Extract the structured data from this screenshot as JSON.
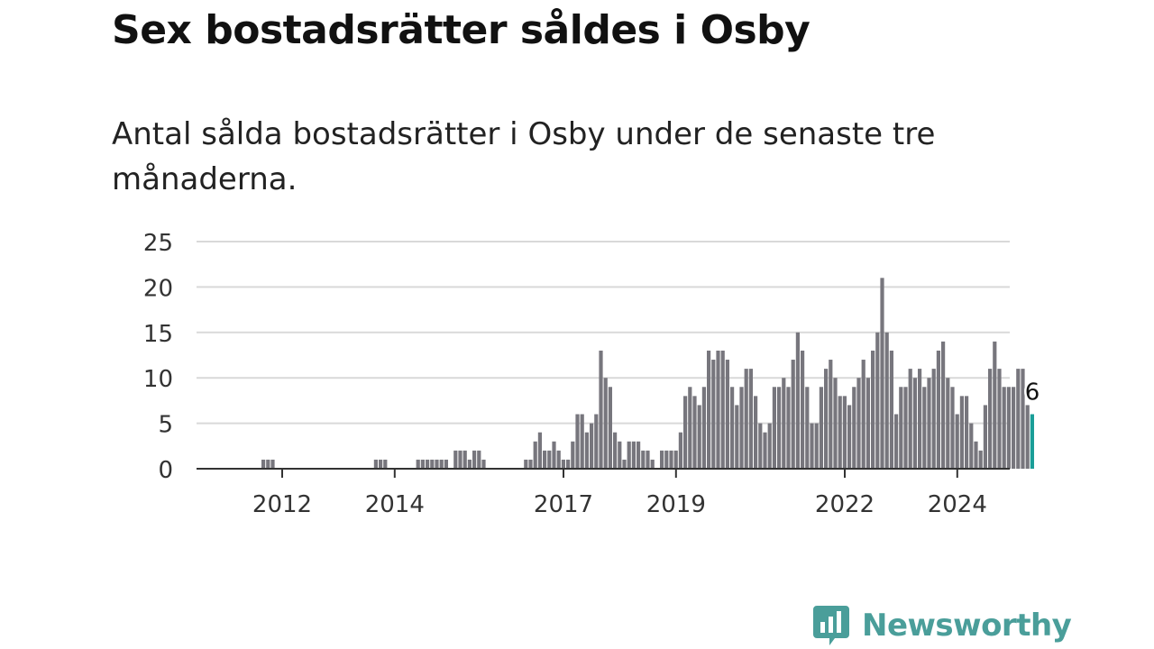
{
  "title": "Sex bostadsrätter såldes i Osby",
  "subtitle": "Antal sålda bostadsrätter i Osby under de senaste tre månaderna.",
  "brand": {
    "name": "Newsworthy",
    "icon": "newsworthy-logo-icon",
    "color": "#4a9e9a"
  },
  "colors": {
    "bar": "#77767d",
    "highlight": "#1a9e98",
    "grid": "#d9d9d9",
    "axis": "#333333"
  },
  "chart_data": {
    "type": "bar",
    "title": "Sex bostadsrätter såldes i Osby",
    "xlabel": "",
    "ylabel": "",
    "ylim": [
      0,
      25
    ],
    "yticks": [
      0,
      5,
      10,
      15,
      20,
      25
    ],
    "xticks": [
      "2012",
      "2014",
      "2017",
      "2019",
      "2022",
      "2024"
    ],
    "grid": true,
    "highlight_label": "6",
    "values": [
      0,
      0,
      0,
      0,
      0,
      0,
      0,
      0,
      1,
      1,
      1,
      0,
      0,
      0,
      0,
      0,
      0,
      0,
      0,
      0,
      0,
      0,
      0,
      0,
      0,
      0,
      0,
      0,
      0,
      0,
      0,
      0,
      1,
      1,
      1,
      0,
      0,
      0,
      0,
      0,
      0,
      1,
      1,
      1,
      1,
      1,
      1,
      1,
      0,
      2,
      2,
      2,
      1,
      2,
      2,
      1,
      0,
      0,
      0,
      0,
      0,
      0,
      0,
      0,
      1,
      1,
      3,
      4,
      2,
      2,
      3,
      2,
      1,
      1,
      3,
      6,
      6,
      4,
      5,
      6,
      13,
      10,
      9,
      4,
      3,
      1,
      3,
      3,
      3,
      2,
      2,
      1,
      0,
      2,
      2,
      2,
      2,
      4,
      8,
      9,
      8,
      7,
      9,
      13,
      12,
      13,
      13,
      12,
      9,
      7,
      9,
      11,
      11,
      8,
      5,
      4,
      5,
      9,
      9,
      10,
      9,
      12,
      15,
      13,
      9,
      5,
      5,
      9,
      11,
      12,
      10,
      8,
      8,
      7,
      9,
      10,
      12,
      10,
      13,
      15,
      21,
      15,
      13,
      6,
      9,
      9,
      11,
      10,
      11,
      9,
      10,
      11,
      13,
      14,
      10,
      9,
      6,
      8,
      8,
      5,
      3,
      2,
      7,
      11,
      14,
      11,
      9,
      9,
      9,
      11,
      11,
      7,
      6
    ]
  }
}
